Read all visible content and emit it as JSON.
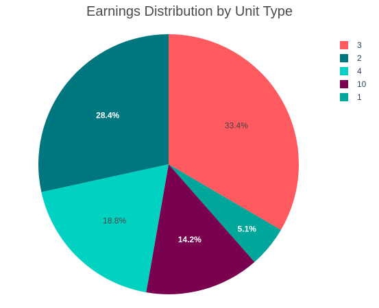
{
  "chart_data": {
    "type": "pie",
    "title": "Earnings Distribution by Unit Type",
    "categories": [
      "3",
      "2",
      "4",
      "10",
      "1"
    ],
    "values": [
      33.4,
      28.4,
      18.8,
      14.2,
      5.1
    ],
    "value_labels": [
      "33.4%",
      "28.4%",
      "18.8%",
      "14.2%",
      "5.1%"
    ],
    "colors": [
      "#FF5A5F",
      "#00767F",
      "#00D1C1",
      "#7A0050",
      "#00A699"
    ],
    "label_colors": [
      "#444444",
      "#ffffff",
      "#444444",
      "#ffffff",
      "#ffffff"
    ],
    "slice_order_clockwise_from_top": [
      "3",
      "1",
      "10",
      "4",
      "2"
    ],
    "legend_position": "top-right"
  }
}
